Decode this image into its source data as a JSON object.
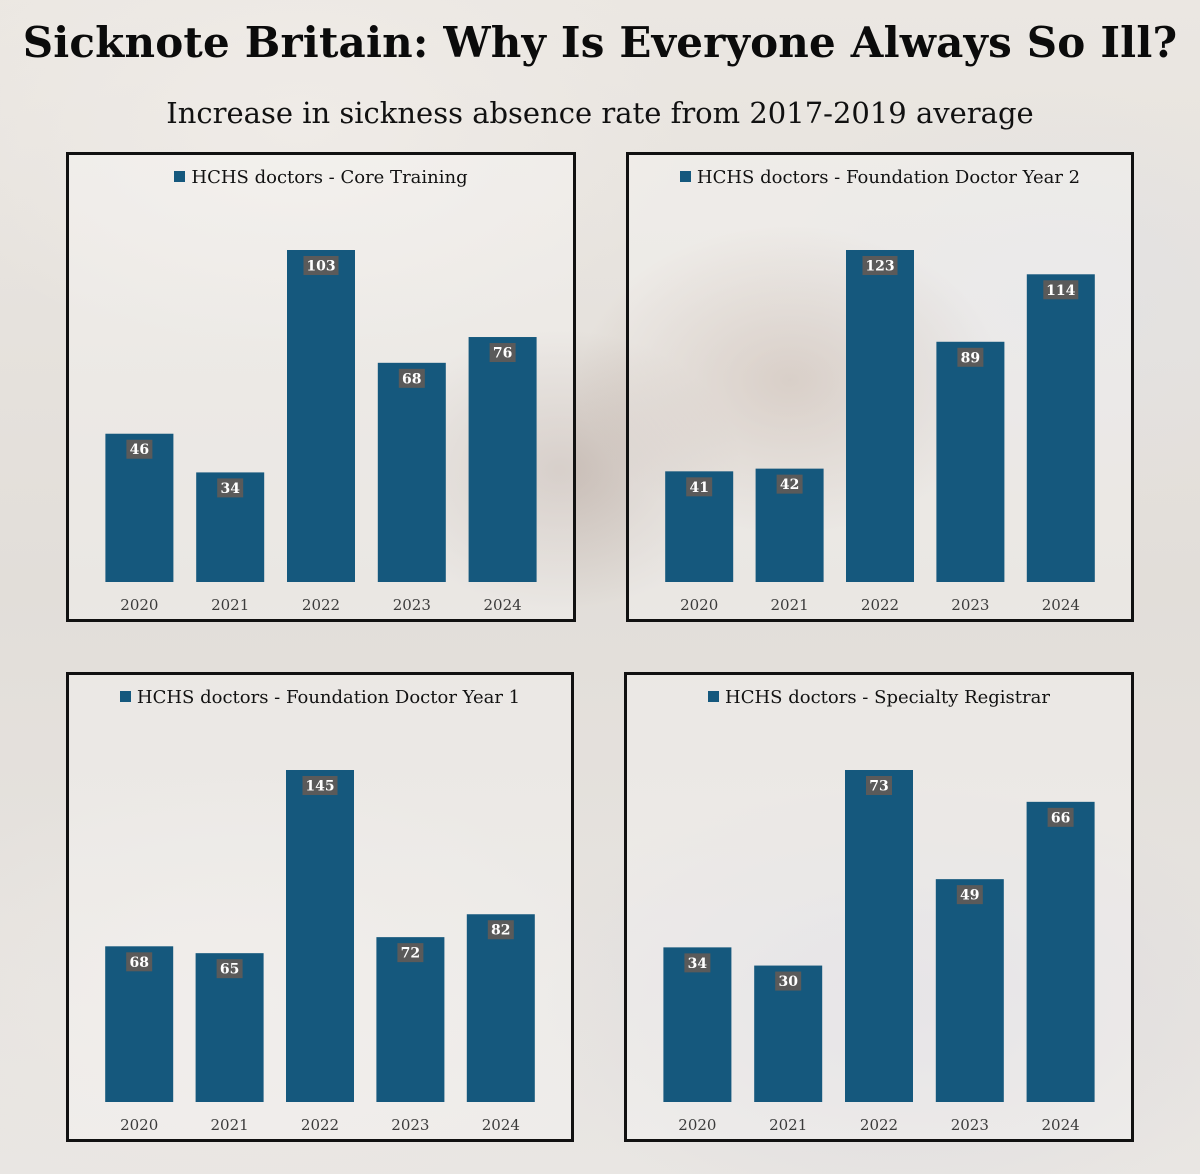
{
  "title": "Sicknote Britain: Why Is Everyone Always So Ill?",
  "subtitle": "Increase in sickness absence rate from 2017-2019 average",
  "colors": {
    "bar": "#15587d",
    "label_bg": "#5a5a5a"
  },
  "chart_data": [
    {
      "type": "bar",
      "legend": "HCHS doctors - Core Training",
      "categories": [
        "2020",
        "2021",
        "2022",
        "2023",
        "2024"
      ],
      "values": [
        46,
        34,
        103,
        68,
        76
      ]
    },
    {
      "type": "bar",
      "legend": "HCHS doctors - Foundation Doctor Year 2",
      "categories": [
        "2020",
        "2021",
        "2022",
        "2023",
        "2024"
      ],
      "values": [
        41,
        42,
        123,
        89,
        114
      ]
    },
    {
      "type": "bar",
      "legend": "HCHS doctors - Foundation Doctor Year 1",
      "categories": [
        "2020",
        "2021",
        "2022",
        "2023",
        "2024"
      ],
      "values": [
        68,
        65,
        145,
        72,
        82
      ]
    },
    {
      "type": "bar",
      "legend": "HCHS doctors - Specialty Registrar",
      "categories": [
        "2020",
        "2021",
        "2022",
        "2023",
        "2024"
      ],
      "values": [
        34,
        30,
        73,
        49,
        66
      ]
    }
  ]
}
